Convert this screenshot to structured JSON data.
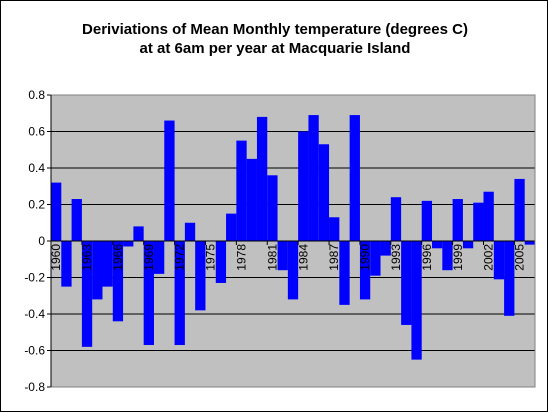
{
  "chart_data": {
    "type": "bar",
    "title_line1": "Deriviations of Mean Monthly temperature (degrees C)",
    "title_line2": "at at 6am per year at Macquarie Island",
    "xlabel": "",
    "ylabel": "",
    "ylim": [
      -0.8,
      0.8
    ],
    "yticks": [
      "0.8",
      "0.6",
      "0.4",
      "0.2",
      "0",
      "-0.2",
      "-0.4",
      "-0.6",
      "-0.8"
    ],
    "grid": "horizontal",
    "colors": {
      "plot_bg": "#c0c0c0",
      "bar": "#0000ff",
      "grid": "#000000"
    },
    "categories": [
      "1960",
      "1961",
      "1962",
      "1963",
      "1964",
      "1965",
      "1966",
      "1967",
      "1968",
      "1969",
      "1970",
      "1971",
      "1972",
      "1973",
      "1974",
      "1975",
      "1976",
      "1977",
      "1978",
      "1979",
      "1980",
      "1981",
      "1982",
      "1983",
      "1984",
      "1985",
      "1986",
      "1987",
      "1988",
      "1989",
      "1990",
      "1991",
      "1992",
      "1993",
      "1994",
      "1995",
      "1996",
      "1997",
      "1998",
      "1999",
      "2000",
      "2001",
      "2002",
      "2003",
      "2004",
      "2005",
      "2006"
    ],
    "values": [
      0.32,
      -0.25,
      0.23,
      -0.58,
      -0.32,
      -0.25,
      -0.44,
      -0.03,
      0.08,
      -0.57,
      -0.18,
      0.66,
      -0.57,
      0.1,
      -0.38,
      0.0,
      -0.23,
      0.15,
      0.55,
      0.45,
      0.68,
      0.36,
      -0.16,
      -0.32,
      0.6,
      0.69,
      0.53,
      0.13,
      -0.35,
      0.69,
      -0.32,
      -0.19,
      -0.08,
      0.24,
      -0.46,
      -0.65,
      0.22,
      -0.04,
      -0.16,
      0.23,
      -0.04,
      0.21,
      0.27,
      -0.21,
      -0.41,
      0.34,
      -0.02
    ],
    "xtick_labels": [
      "1960",
      "1963",
      "1966",
      "1969",
      "1972",
      "1975",
      "1978",
      "1981",
      "1984",
      "1987",
      "1990",
      "1993",
      "1996",
      "1999",
      "2002",
      "2005"
    ]
  }
}
